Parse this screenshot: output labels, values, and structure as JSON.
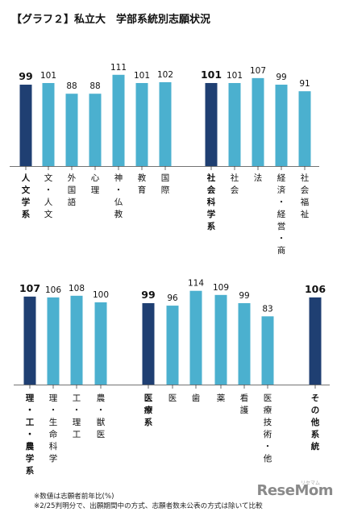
{
  "title": "【グラフ２】私立大　学部系統別志願状況",
  "notes": [
    "※数値は志願者前年比(%)",
    "※2/25判明分で、出願期間中の方式、志願者数未公表の方式は除いて比較"
  ],
  "logo": "ReseMom",
  "logo_sub": "リセマム",
  "colors": {
    "dark": "#1f3f72",
    "light": "#4bb0cf",
    "text": "#111111"
  },
  "chart_data": [
    {
      "type": "bar",
      "title": "",
      "xlabel": "",
      "ylabel": "",
      "ylim": [
        0,
        114
      ],
      "grid": false,
      "categories": [
        "人文学系",
        "文・人文",
        "外国語",
        "心理",
        "神・仏教",
        "教育",
        "国際",
        "社会科学系",
        "社会",
        "法",
        "経済・経営・商",
        "社会福祉"
      ],
      "values": [
        99,
        101,
        88,
        88,
        111,
        101,
        102,
        101,
        101,
        107,
        99,
        91
      ],
      "highlight": [
        true,
        false,
        false,
        false,
        false,
        false,
        false,
        true,
        false,
        false,
        false,
        false
      ]
    },
    {
      "type": "bar",
      "title": "",
      "xlabel": "",
      "ylabel": "",
      "ylim": [
        0,
        114
      ],
      "grid": false,
      "categories": [
        "理・工・農学系",
        "理・生命科学",
        "工・理工",
        "農・獣医",
        "医療系",
        "医",
        "歯",
        "薬",
        "看護",
        "医療技術・他",
        "その他系統"
      ],
      "values": [
        107,
        106,
        108,
        100,
        99,
        96,
        114,
        109,
        99,
        83,
        106
      ],
      "highlight": [
        true,
        false,
        false,
        false,
        true,
        false,
        false,
        false,
        false,
        false,
        true
      ]
    }
  ]
}
